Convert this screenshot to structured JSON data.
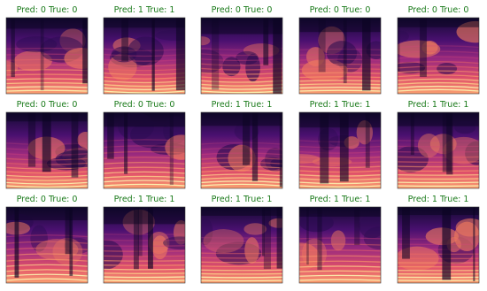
{
  "panels": [
    {
      "title": "Pred: 0 True: 0"
    },
    {
      "title": "Pred: 1 True: 1"
    },
    {
      "title": "Pred: 0 True: 0"
    },
    {
      "title": "Pred: 0 True: 0"
    },
    {
      "title": "Pred: 0 True: 0"
    },
    {
      "title": "Pred: 0 True: 0"
    },
    {
      "title": "Pred: 0 True: 0"
    },
    {
      "title": "Pred: 1 True: 1"
    },
    {
      "title": "Pred: 1 True: 1"
    },
    {
      "title": "Pred: 1 True: 1"
    },
    {
      "title": "Pred: 0 True: 0"
    },
    {
      "title": "Pred: 1 True: 1"
    },
    {
      "title": "Pred: 1 True: 1"
    },
    {
      "title": "Pred: 1 True: 1"
    },
    {
      "title": "Pred: 1 True: 1"
    }
  ]
}
